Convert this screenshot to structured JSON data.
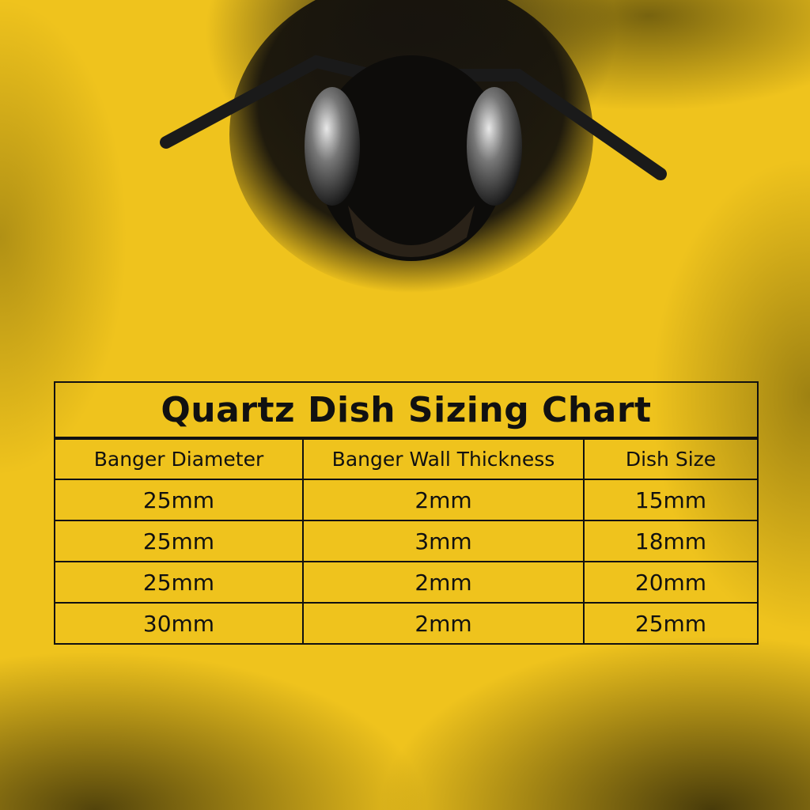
{
  "colors": {
    "background": "#efc31d",
    "text": "#111111",
    "border": "#111111"
  },
  "image": "bee-face-photo",
  "chart_data": {
    "type": "table",
    "title": "Quartz Dish Sizing Chart",
    "columns": [
      "Banger Diameter",
      "Banger Wall Thickness",
      "Dish Size"
    ],
    "rows": [
      [
        "25mm",
        "2mm",
        "15mm"
      ],
      [
        "25mm",
        "3mm",
        "18mm"
      ],
      [
        "25mm",
        "2mm",
        "20mm"
      ],
      [
        "30mm",
        "2mm",
        "25mm"
      ]
    ]
  }
}
